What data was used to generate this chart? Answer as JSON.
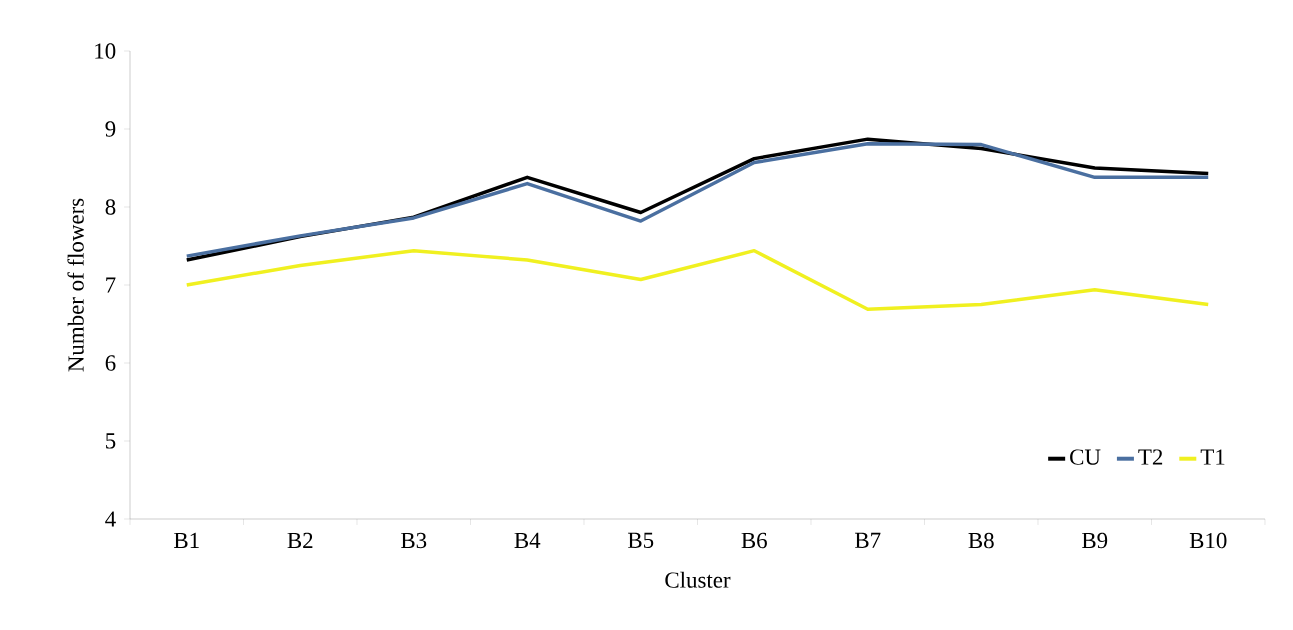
{
  "chart_data": {
    "type": "line",
    "xlabel": "Cluster",
    "ylabel": "Number of flowers",
    "categories": [
      "B1",
      "B2",
      "B3",
      "B4",
      "B5",
      "B6",
      "B7",
      "B8",
      "B9",
      "B10"
    ],
    "series": [
      {
        "name": "CU",
        "color": "#000000",
        "values": [
          7.32,
          7.62,
          7.87,
          8.38,
          7.93,
          8.62,
          8.87,
          8.75,
          8.5,
          8.43
        ]
      },
      {
        "name": "T2",
        "color": "#4a6fa0",
        "values": [
          7.37,
          7.63,
          7.86,
          8.3,
          7.82,
          8.57,
          8.81,
          8.8,
          8.38,
          8.38
        ]
      },
      {
        "name": "T1",
        "color": "#f0f020",
        "values": [
          7.0,
          7.25,
          7.44,
          7.32,
          7.07,
          7.44,
          6.69,
          6.75,
          6.94,
          6.75
        ]
      }
    ],
    "ylim": [
      4,
      10
    ],
    "yticks": [
      4,
      5,
      6,
      7,
      8,
      9,
      10
    ],
    "legend": "bottom right",
    "marker": "none",
    "line_style": "solid"
  }
}
